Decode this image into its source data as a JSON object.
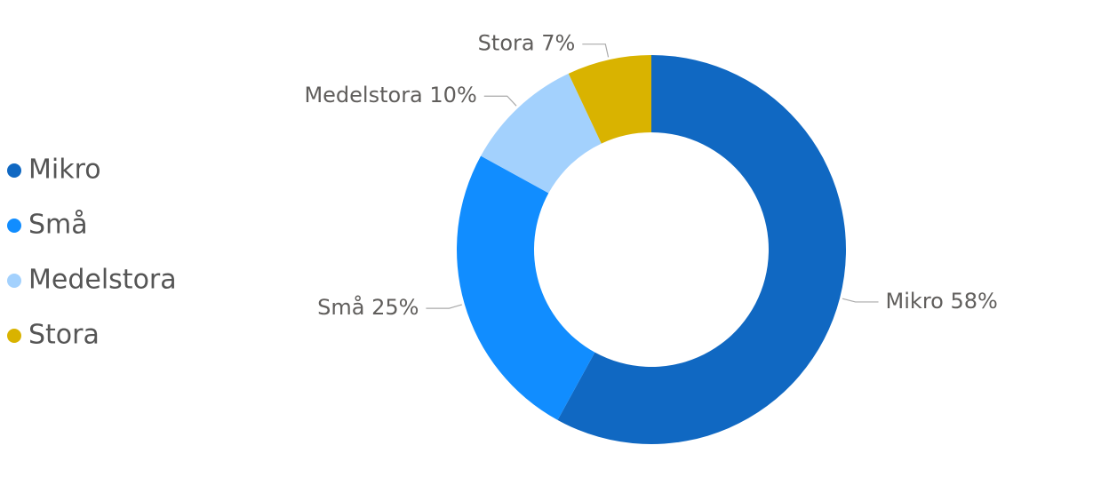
{
  "chart_data": {
    "type": "donut",
    "categories": [
      "Mikro",
      "Små",
      "Medelstora",
      "Stora"
    ],
    "values": [
      58,
      25,
      10,
      7
    ],
    "value_labels": [
      "58%",
      "25%",
      "10%",
      "7%"
    ],
    "colors": [
      "#1068c2",
      "#118dff",
      "#a3d1fd",
      "#d9b300"
    ]
  }
}
